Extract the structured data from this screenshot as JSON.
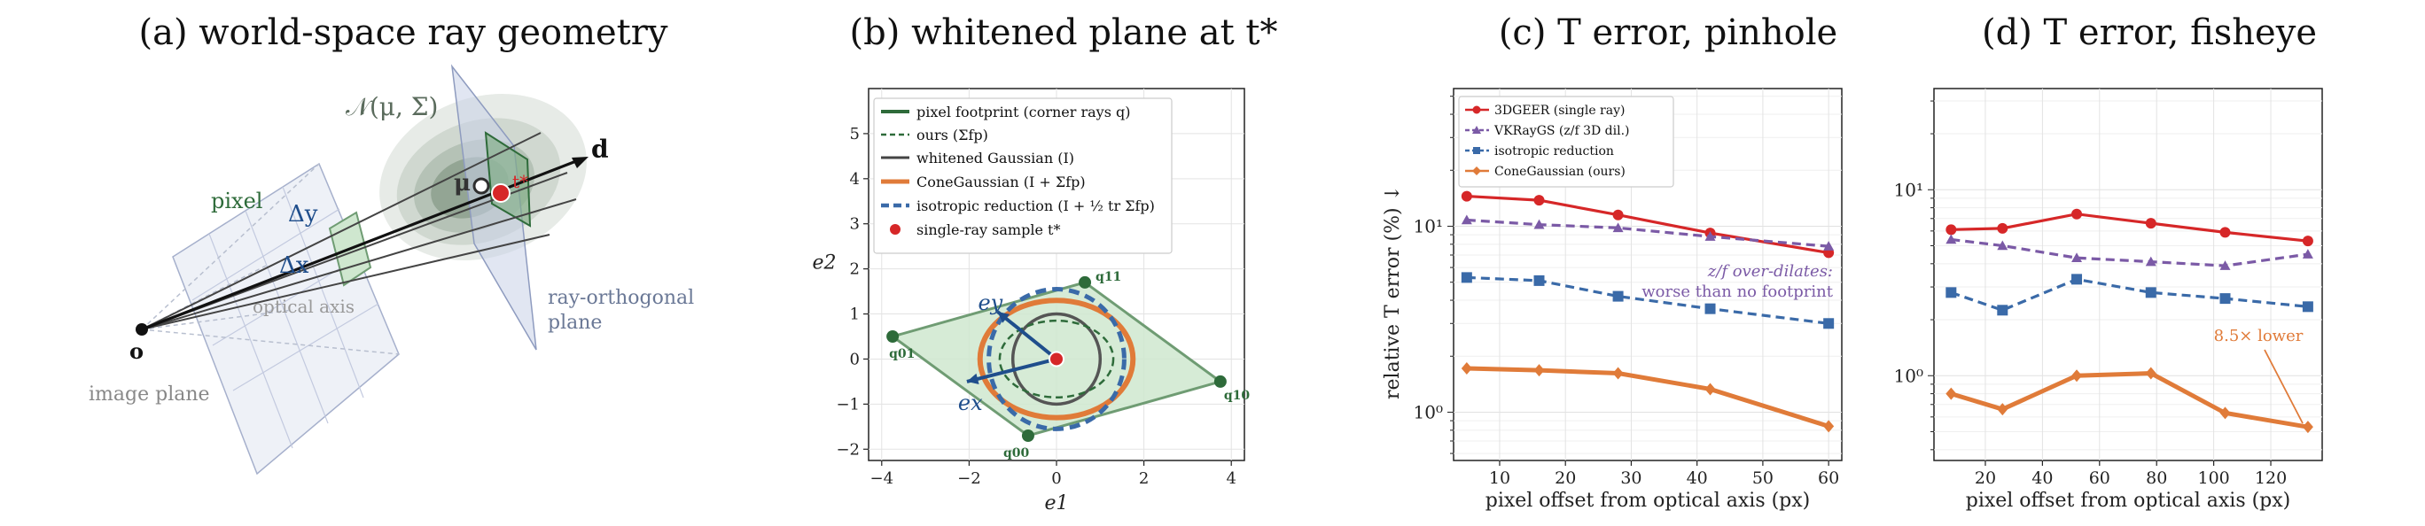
{
  "panels": [
    {
      "title": "(a)  world-space ray geometry"
    },
    {
      "title": "(b)  whitened plane at t*"
    },
    {
      "title": "(c)  T error, pinhole"
    },
    {
      "title": "(d)  T error, fisheye"
    }
  ],
  "panel_a": {
    "labels": {
      "normal": "𝒩(μ, Σ)",
      "mu": "μ",
      "tstar": "t*",
      "d": "d",
      "pixel": "pixel",
      "dy": "Δy",
      "dx": "Δx",
      "optical_axis": "optical axis",
      "origin": "o",
      "image_plane": "image plane",
      "ray_orth_1": "ray-orthogonal",
      "ray_orth_2": "plane"
    },
    "colors": {
      "plane": "#9aa7c7",
      "pixel": "#2e6b3a",
      "gaussian": "#5f7a64",
      "red": "#d62728",
      "blue": "#1f4e8c"
    }
  },
  "chart_data": [
    {
      "type": "scatter",
      "panel": "b",
      "xlabel": "e1",
      "ylabel": "e2",
      "xlim": [
        -4.3,
        4.3
      ],
      "ylim": [
        -2.25,
        6.0
      ],
      "xticks": [
        -4,
        -2,
        0,
        2,
        4
      ],
      "yticks": [
        -2,
        -1,
        0,
        1,
        2,
        3,
        4,
        5
      ],
      "grid": true,
      "legend_position": "top-left",
      "legend": [
        {
          "label": "pixel footprint (corner rays q)",
          "color": "#2e6b3a",
          "style": "solid"
        },
        {
          "label": "ours  (Σfp)",
          "color": "#2e6b3a",
          "style": "dashed"
        },
        {
          "label": "whitened Gaussian (I)",
          "color": "#444444",
          "style": "solid"
        },
        {
          "label": "ConeGaussian  (I + Σfp)",
          "color": "#e07b39",
          "style": "solid-thick"
        },
        {
          "label": "isotropic reduction  (I + ½ tr Σfp)",
          "color": "#3a6aa8",
          "style": "dashed-thick"
        },
        {
          "label": "single-ray sample t*",
          "color": "#d62728",
          "style": "marker"
        }
      ],
      "footprint": [
        {
          "label": "q11",
          "x": 0.65,
          "y": 1.7
        },
        {
          "label": "q10",
          "x": 3.75,
          "y": -0.5
        },
        {
          "label": "q00",
          "x": -0.65,
          "y": -1.7
        },
        {
          "label": "q01",
          "x": -3.75,
          "y": 0.5
        }
      ],
      "circles": {
        "whitened_r": 1.0,
        "ours_rx": 1.3,
        "ours_ry": 0.85,
        "cone_rx": 1.75,
        "cone_ry": 1.3,
        "iso_r": 1.55
      },
      "axes_vectors": {
        "ey": {
          "x": -1.35,
          "y": 1.05,
          "label": "ey"
        },
        "ex": {
          "x": -2.05,
          "y": -0.5,
          "label": "ex"
        }
      },
      "sample": {
        "x": 0,
        "y": 0
      }
    },
    {
      "type": "line",
      "panel": "c",
      "xlabel": "pixel offset from optical axis (px)",
      "ylabel": "relative T error (%) ↓",
      "xlim": [
        3,
        62
      ],
      "ylim": [
        0.55,
        55
      ],
      "log_y": true,
      "xticks": [
        10,
        20,
        30,
        40,
        50,
        60
      ],
      "grid": true,
      "legend_position": "top-left",
      "x": [
        5,
        16,
        28,
        42,
        60
      ],
      "series": [
        {
          "name": "3DGEER (single ray)",
          "color": "#d62728",
          "marker": "circle",
          "dash": "solid",
          "values": [
            14.5,
            13.8,
            11.5,
            9.2,
            7.2
          ]
        },
        {
          "name": "VKRayGS (z/f 3D dil.)",
          "color": "#7b5aa6",
          "marker": "triangle",
          "dash": "dashed",
          "values": [
            10.8,
            10.2,
            9.8,
            8.8,
            7.8
          ]
        },
        {
          "name": "isotropic reduction",
          "color": "#3a6aa8",
          "marker": "square",
          "dash": "dashed",
          "values": [
            5.3,
            5.1,
            4.2,
            3.6,
            3.0
          ]
        },
        {
          "name": "ConeGaussian (ours)",
          "color": "#e07b39",
          "marker": "diamond",
          "dash": "solid",
          "values": [
            1.72,
            1.68,
            1.62,
            1.33,
            0.84
          ]
        }
      ],
      "annotations": [
        {
          "text1": "z/f over-dilates:",
          "text2": "worse than no footprint",
          "color": "#7b5aa6"
        }
      ]
    },
    {
      "type": "line",
      "panel": "d",
      "xlabel": "pixel offset from optical axis (px)",
      "ylabel": "",
      "xlim": [
        2,
        138
      ],
      "ylim": [
        0.35,
        35
      ],
      "log_y": true,
      "xticks": [
        20,
        40,
        60,
        80,
        100,
        120
      ],
      "grid": true,
      "x": [
        8,
        26,
        52,
        78,
        104,
        133
      ],
      "series": [
        {
          "color": "#d62728",
          "marker": "circle",
          "dash": "solid",
          "values": [
            6.1,
            6.2,
            7.4,
            6.6,
            5.9,
            5.3
          ]
        },
        {
          "color": "#7b5aa6",
          "marker": "triangle",
          "dash": "dashed",
          "values": [
            5.4,
            5.0,
            4.3,
            4.1,
            3.9,
            4.5
          ]
        },
        {
          "color": "#3a6aa8",
          "marker": "square",
          "dash": "dashed",
          "values": [
            2.8,
            2.25,
            3.3,
            2.8,
            2.6,
            2.35
          ]
        },
        {
          "color": "#e07b39",
          "marker": "diamond",
          "dash": "solid",
          "values": [
            0.8,
            0.66,
            1.0,
            1.03,
            0.63,
            0.53
          ]
        }
      ],
      "annotations": [
        {
          "text": "8.5× lower",
          "color": "#e07b39"
        }
      ]
    }
  ]
}
